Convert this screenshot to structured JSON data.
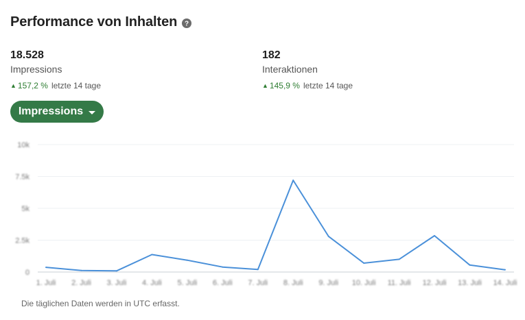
{
  "header": {
    "title": "Performance von Inhalten",
    "help_icon": "question-circle-icon"
  },
  "metrics": [
    {
      "value": "18.528",
      "label": "Impressions",
      "change": "157,2 %",
      "period": "letzte 14 tage"
    },
    {
      "value": "182",
      "label": "Interaktionen",
      "change": "145,9 %",
      "period": "letzte 14 tage"
    }
  ],
  "dropdown": {
    "label": "Impressions"
  },
  "colors": {
    "line": "#4a90d9",
    "accent": "#347a47",
    "positive": "#2e7d32"
  },
  "chart_data": {
    "type": "line",
    "categories": [
      "1. Juli",
      "2. Juli",
      "3. Juli",
      "4. Juli",
      "5. Juli",
      "6. Juli",
      "7. Juli",
      "8. Juli",
      "9. Juli",
      "10. Juli",
      "11. Juli",
      "12. Juli",
      "13. Juli",
      "14. Juli"
    ],
    "series": [
      {
        "values": [
          370,
          120,
          90,
          1370,
          930,
          390,
          200,
          7200,
          2800,
          700,
          1000,
          2850,
          550,
          180
        ]
      }
    ],
    "yticks": [
      "0",
      "2.5k",
      "5k",
      "7.5k",
      "10k"
    ],
    "ylim": [
      0,
      10000
    ],
    "grid": true
  },
  "footnote": "Die täglichen Daten werden in UTC erfasst."
}
